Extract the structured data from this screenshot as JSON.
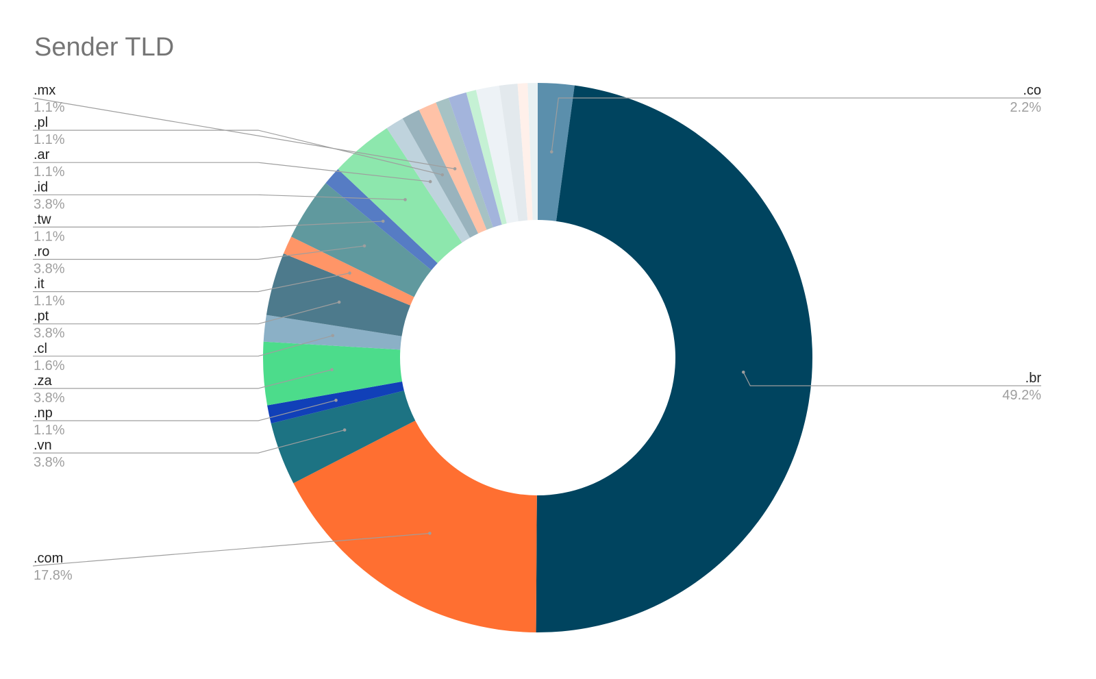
{
  "chart_data": {
    "type": "pie",
    "donut": true,
    "title": "Sender TLD",
    "slices": [
      {
        "label": ".co",
        "value": 2.2,
        "display": "2.2%",
        "color": "#5b8fac",
        "labeled": true
      },
      {
        "label": ".br",
        "value": 49.2,
        "display": "49.2%",
        "color": "#00445f",
        "labeled": true
      },
      {
        "label": ".com",
        "value": 17.8,
        "display": "17.8%",
        "color": "#ff6f31",
        "labeled": true
      },
      {
        "label": ".vn",
        "value": 3.8,
        "display": "3.8%",
        "color": "#1d7383",
        "labeled": true
      },
      {
        "label": ".np",
        "value": 1.1,
        "display": "1.1%",
        "color": "#1140b8",
        "labeled": true
      },
      {
        "label": ".za",
        "value": 3.8,
        "display": "3.8%",
        "color": "#4cdc8b",
        "labeled": true
      },
      {
        "label": ".cl",
        "value": 1.6,
        "display": "1.6%",
        "color": "#8bb0c6",
        "labeled": true
      },
      {
        "label": ".pt",
        "value": 3.8,
        "display": "3.8%",
        "color": "#4d7a8c",
        "labeled": true
      },
      {
        "label": ".it",
        "value": 1.1,
        "display": "1.1%",
        "color": "#ff9567",
        "labeled": true
      },
      {
        "label": ".ro",
        "value": 3.8,
        "display": "3.8%",
        "color": "#60999e",
        "labeled": true
      },
      {
        "label": ".tw",
        "value": 1.1,
        "display": "1.1%",
        "color": "#567cc4",
        "labeled": true
      },
      {
        "label": ".id",
        "value": 3.8,
        "display": "3.8%",
        "color": "#8de7ad",
        "labeled": true
      },
      {
        "label": ".ar",
        "value": 1.1,
        "display": "1.1%",
        "color": "#bfd3dd",
        "labeled": true
      },
      {
        "label": ".pl",
        "value": 1.1,
        "display": "1.1%",
        "color": "#99b3bd",
        "labeled": true
      },
      {
        "label": ".mx",
        "value": 1.1,
        "display": "1.1%",
        "color": "#ffc2a7",
        "labeled": true
      },
      {
        "label": "",
        "value": 0.8,
        "color": "#a6c2c4",
        "labeled": false
      },
      {
        "label": "",
        "value": 1.1,
        "color": "#a3b4dc",
        "labeled": false
      },
      {
        "label": "",
        "value": 0.6,
        "color": "#c5f1d4",
        "labeled": false
      },
      {
        "label": "",
        "value": 1.4,
        "color": "#edf2f6",
        "labeled": false
      },
      {
        "label": "",
        "value": 1.1,
        "color": "#e3e9ed",
        "labeled": false
      },
      {
        "label": "",
        "value": 0.6,
        "color": "#fff0ea",
        "labeled": false
      },
      {
        "label": "",
        "value": 0.6,
        "color": "#e8f1f3",
        "labeled": false
      }
    ]
  }
}
